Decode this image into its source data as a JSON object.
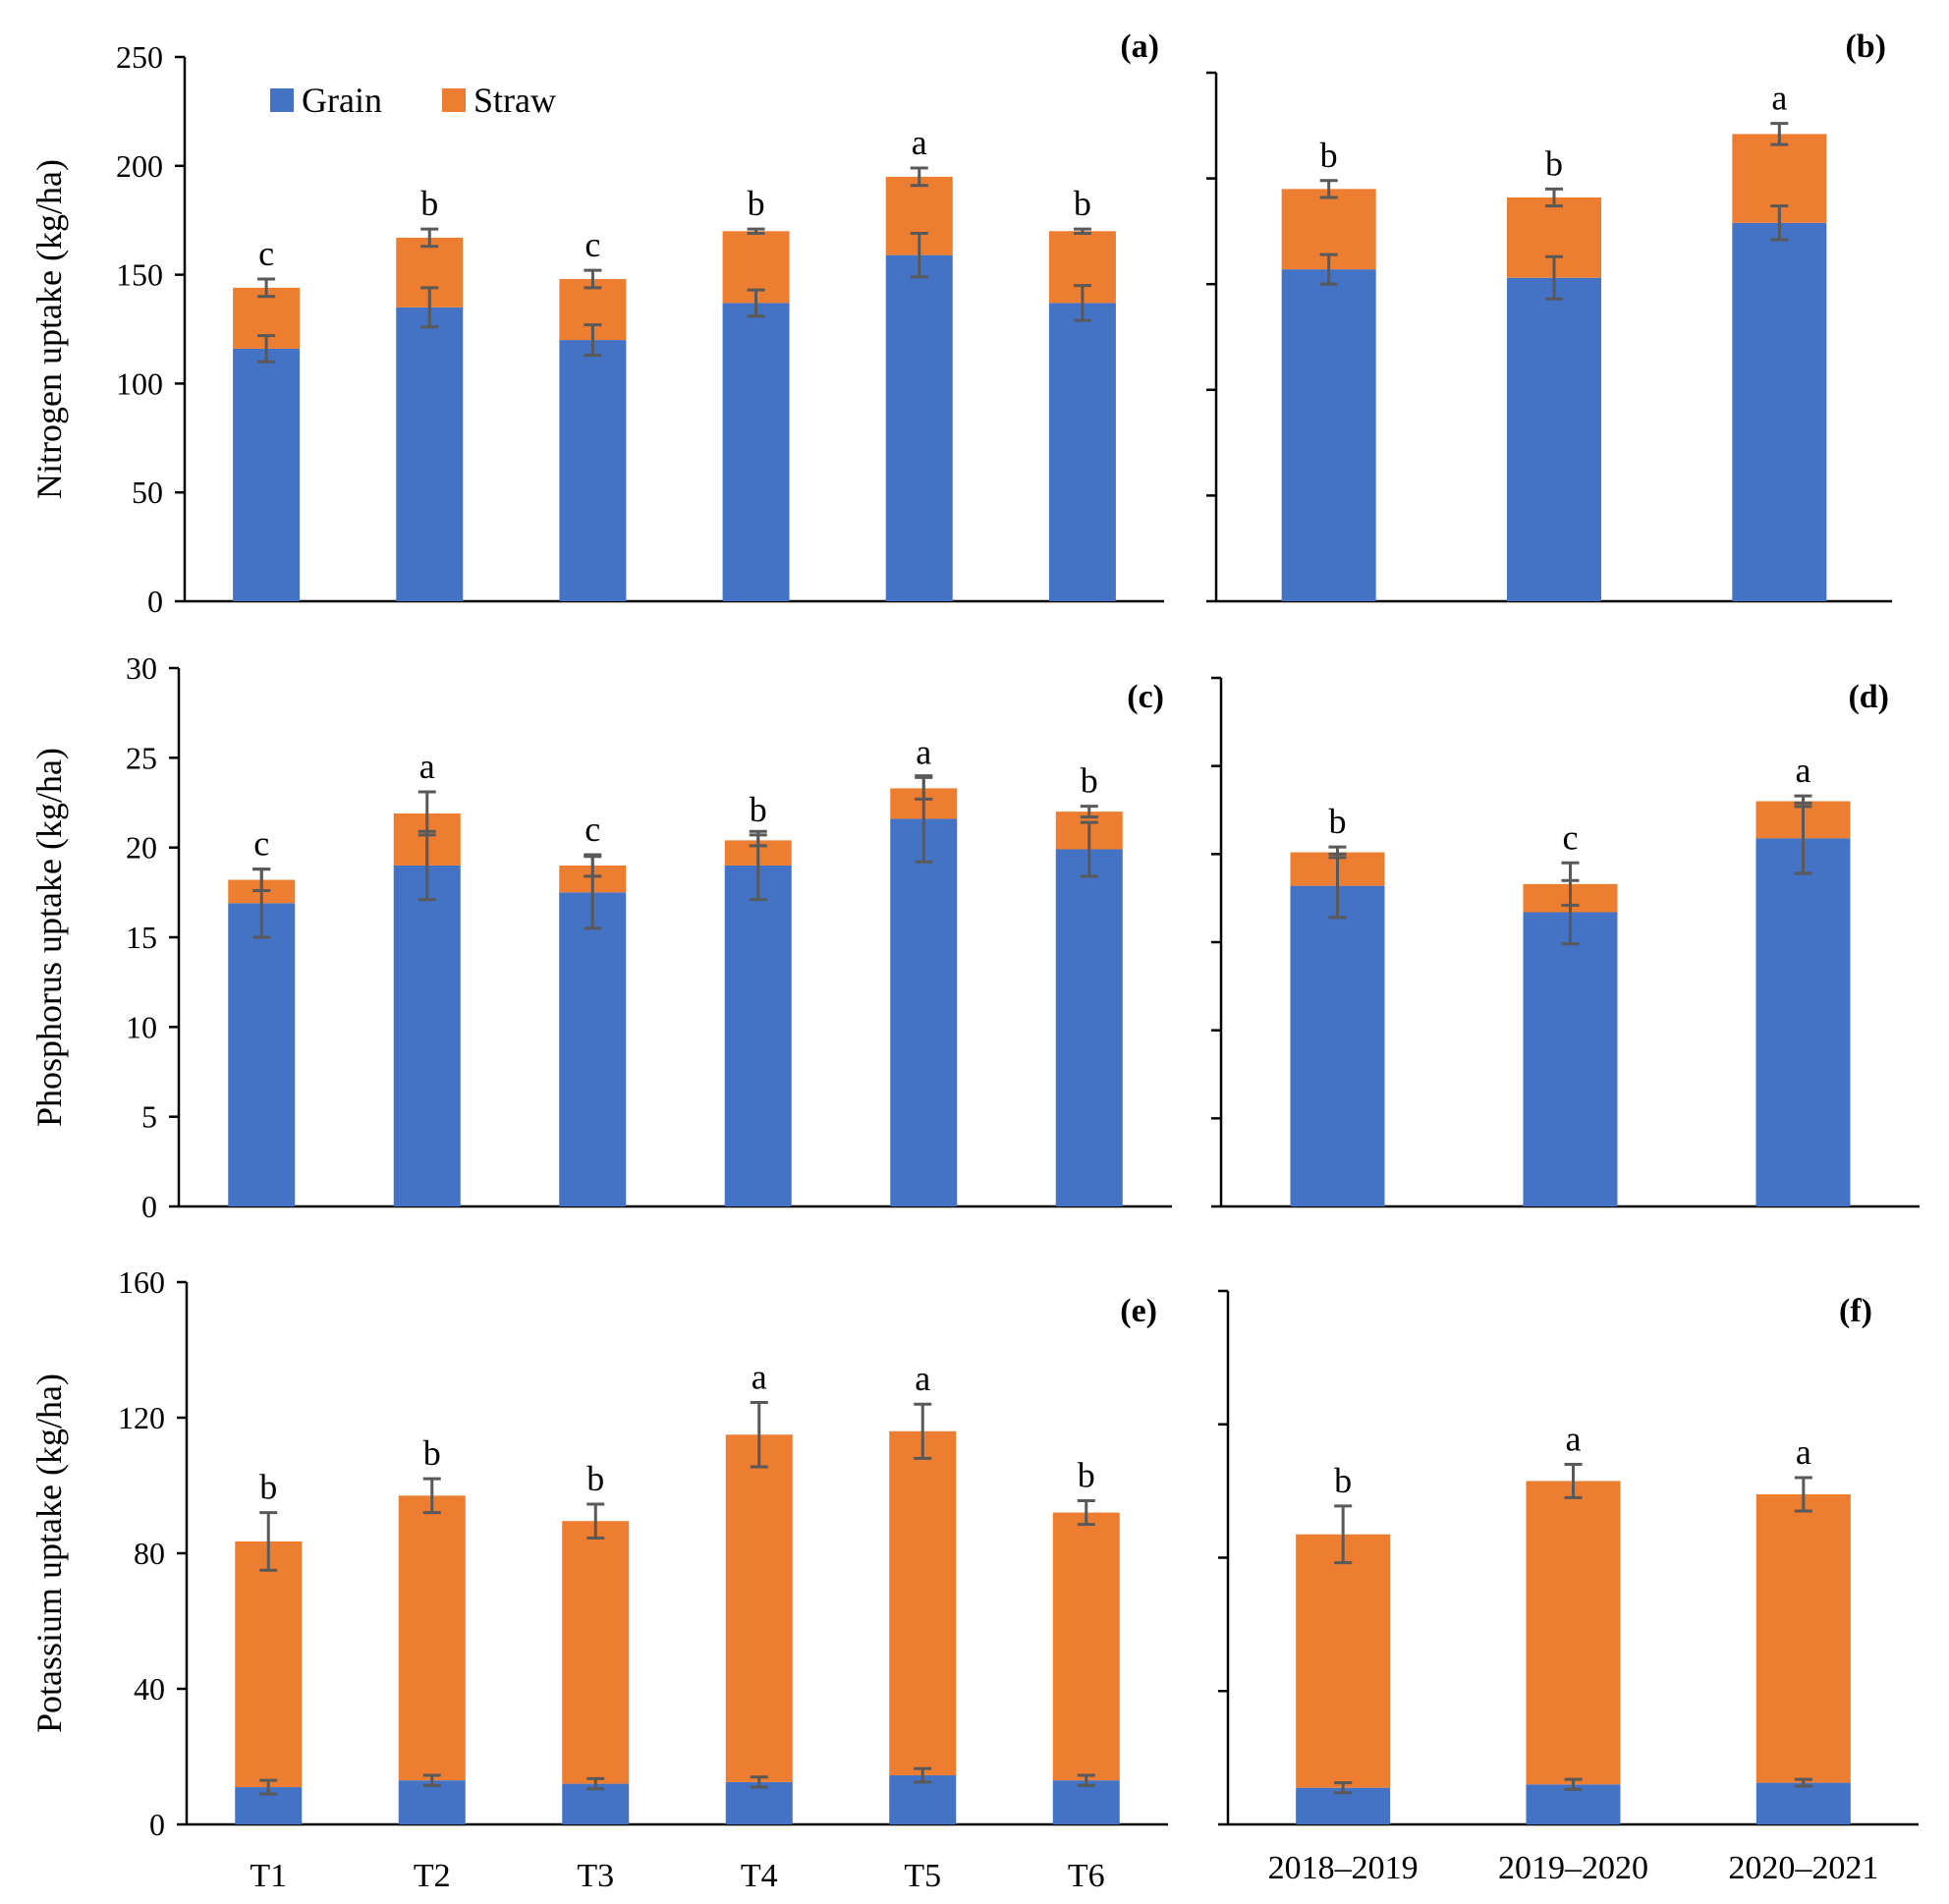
{
  "legend": [
    {
      "name": "Grain",
      "color": "#4472C4"
    },
    {
      "name": "Straw",
      "color": "#ED7D31"
    }
  ],
  "colors": {
    "grain": "#4472C4",
    "straw": "#ED7D31",
    "error_bar": "#595959",
    "axis": "#000000"
  },
  "chart_data": [
    {
      "type": "bar",
      "stacked": true,
      "panel": "(a)",
      "ylabel": "Nitrogen uptake (kg/ha)",
      "ylim": [
        0,
        250
      ],
      "yticks": [
        0,
        50,
        100,
        150,
        200,
        250
      ],
      "show_tick_labels": true,
      "show_x_labels": false,
      "categories": [
        "T1",
        "T2",
        "T3",
        "T4",
        "T5",
        "T6"
      ],
      "series": [
        {
          "name": "Grain",
          "values": [
            116,
            135,
            120,
            137,
            159,
            137
          ],
          "errors": [
            6,
            9,
            7,
            6,
            10,
            8
          ]
        },
        {
          "name": "Straw",
          "values": [
            28,
            32,
            28,
            33,
            36,
            33
          ],
          "errors": [
            4,
            4,
            4,
            1,
            4,
            1
          ]
        }
      ],
      "significance": [
        "c",
        "b",
        "c",
        "b",
        "a",
        "b"
      ]
    },
    {
      "type": "bar",
      "stacked": true,
      "panel": "(b)",
      "ylabel": "",
      "ylim": [
        0,
        250
      ],
      "yticks": [
        0,
        50,
        100,
        150,
        200,
        250
      ],
      "show_tick_labels": false,
      "show_x_labels": false,
      "categories": [
        "2018–2019",
        "2019–2020",
        "2020–2021"
      ],
      "series": [
        {
          "name": "Grain",
          "values": [
            157,
            153,
            179
          ],
          "errors": [
            7,
            10,
            8
          ]
        },
        {
          "name": "Straw",
          "values": [
            38,
            38,
            42
          ],
          "errors": [
            4,
            4,
            5
          ]
        }
      ],
      "significance": [
        "b",
        "b",
        "a"
      ]
    },
    {
      "type": "bar",
      "stacked": true,
      "panel": "(c)",
      "ylabel": "Phosphorus uptake (kg/ha)",
      "ylim": [
        0,
        30
      ],
      "yticks": [
        0,
        5,
        10,
        15,
        20,
        25,
        30
      ],
      "show_tick_labels": true,
      "show_x_labels": false,
      "categories": [
        "T1",
        "T2",
        "T3",
        "T4",
        "T5",
        "T6"
      ],
      "series": [
        {
          "name": "Grain",
          "values": [
            16.9,
            19.0,
            17.5,
            19.0,
            21.6,
            19.9
          ],
          "errors": [
            1.9,
            1.9,
            2.0,
            1.9,
            2.4,
            1.5
          ]
        },
        {
          "name": "Straw",
          "values": [
            1.3,
            2.9,
            1.5,
            1.4,
            1.7,
            2.1
          ],
          "errors": [
            0.6,
            1.2,
            0.6,
            0.3,
            0.6,
            0.3
          ]
        }
      ],
      "significance": [
        "c",
        "a",
        "c",
        "b",
        "a",
        "b"
      ]
    },
    {
      "type": "bar",
      "stacked": true,
      "panel": "(d)",
      "ylabel": "",
      "ylim": [
        0,
        30
      ],
      "yticks": [
        0,
        5,
        10,
        15,
        20,
        25,
        30
      ],
      "show_tick_labels": false,
      "show_x_labels": false,
      "categories": [
        "2018–2019",
        "2019–2020",
        "2020–2021"
      ],
      "series": [
        {
          "name": "Grain",
          "values": [
            18.2,
            16.7,
            20.9
          ],
          "errors": [
            1.8,
            1.8,
            2.0
          ]
        },
        {
          "name": "Straw",
          "values": [
            1.9,
            1.6,
            2.1
          ],
          "errors": [
            0.3,
            1.2,
            0.3
          ]
        }
      ],
      "significance": [
        "b",
        "c",
        "a"
      ]
    },
    {
      "type": "bar",
      "stacked": true,
      "panel": "(e)",
      "ylabel": "Potassium uptake (kg/ha)",
      "ylim": [
        0,
        160
      ],
      "yticks": [
        0,
        40,
        80,
        120,
        160
      ],
      "show_tick_labels": true,
      "show_x_labels": true,
      "categories": [
        "T1",
        "T2",
        "T3",
        "T4",
        "T5",
        "T6"
      ],
      "series": [
        {
          "name": "Grain",
          "values": [
            11,
            13,
            12,
            12.5,
            14.5,
            13
          ],
          "errors": [
            2,
            1.5,
            1.5,
            1.5,
            2,
            1.5
          ]
        },
        {
          "name": "Straw",
          "values": [
            72.5,
            84,
            77.5,
            102.5,
            101.5,
            79
          ],
          "errors": [
            8.5,
            5,
            5,
            9.5,
            8,
            3.5
          ]
        }
      ],
      "significance": [
        "b",
        "b",
        "b",
        "a",
        "a",
        "b"
      ]
    },
    {
      "type": "bar",
      "stacked": true,
      "panel": "(f)",
      "ylabel": "",
      "ylim": [
        0,
        160
      ],
      "yticks": [
        0,
        40,
        80,
        120,
        160
      ],
      "show_tick_labels": false,
      "show_x_labels": true,
      "categories": [
        "2018–2019",
        "2019–2020",
        "2020–2021"
      ],
      "series": [
        {
          "name": "Grain",
          "values": [
            11,
            12,
            12.5
          ],
          "errors": [
            1.5,
            1.5,
            1
          ]
        },
        {
          "name": "Straw",
          "values": [
            76,
            91,
            86.5
          ],
          "errors": [
            8.5,
            5,
            5
          ]
        }
      ],
      "significance": [
        "b",
        "a",
        "a"
      ]
    }
  ]
}
